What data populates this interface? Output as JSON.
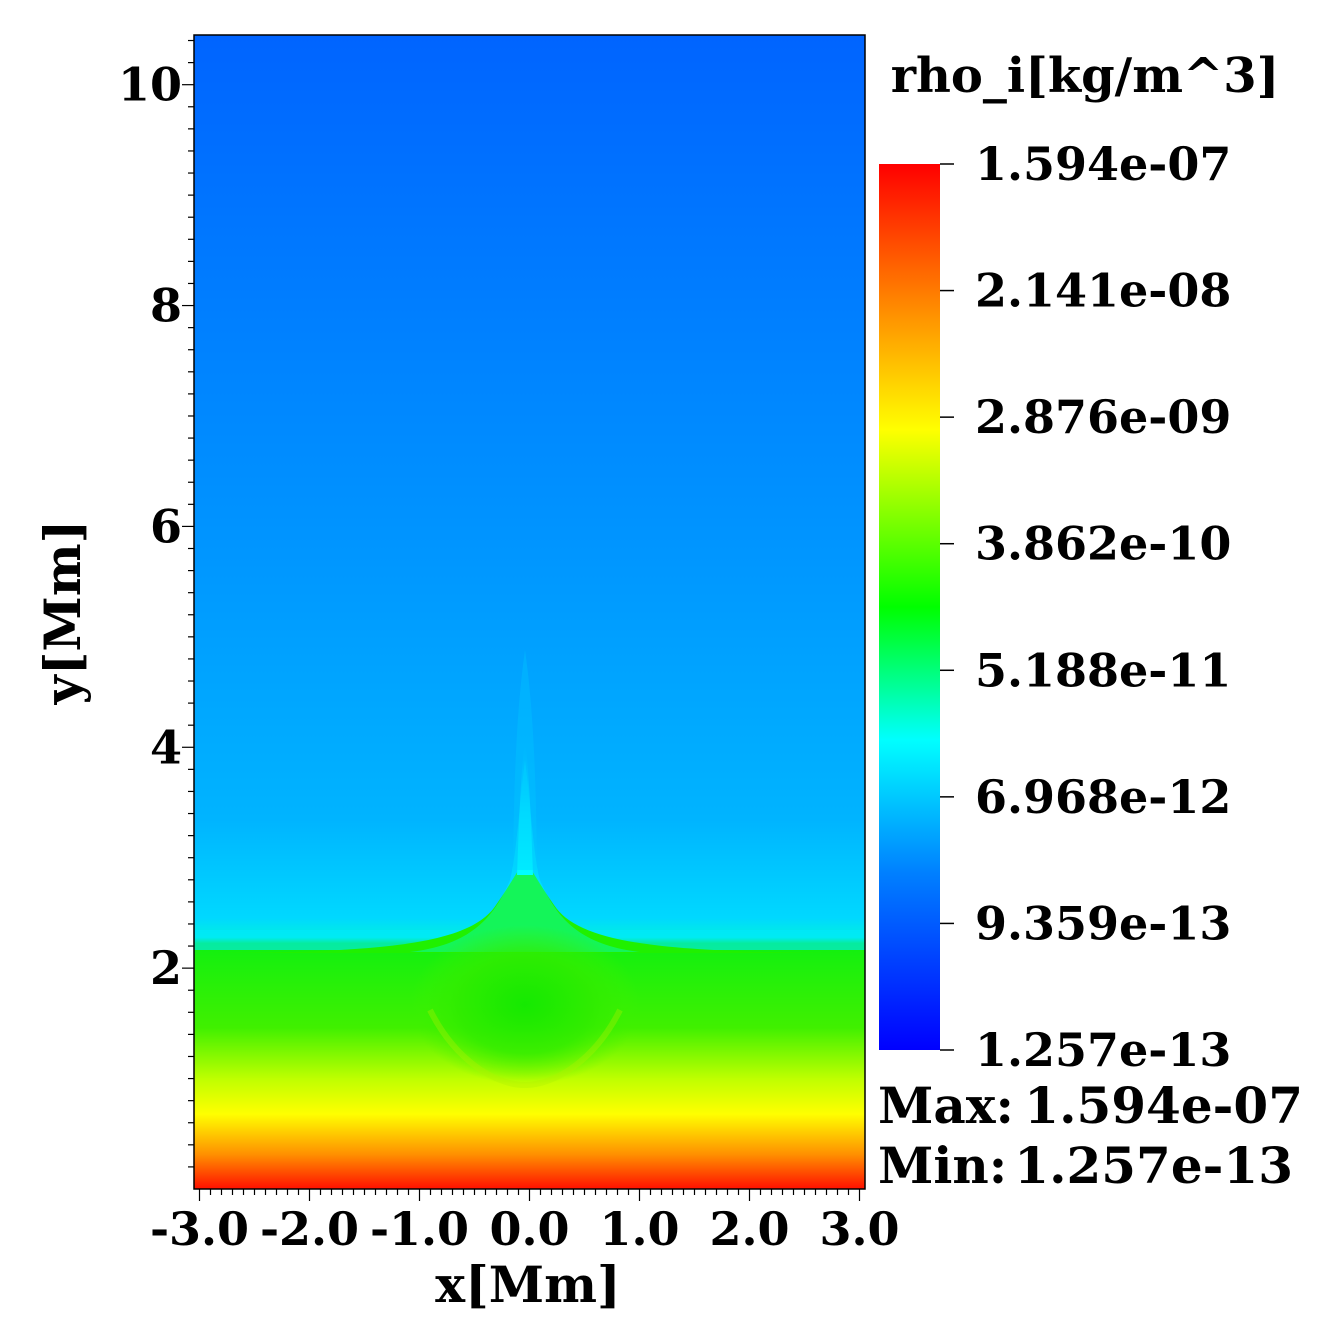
{
  "chart_data": {
    "type": "heatmap",
    "variable_label": "rho_i[kg/m^3]",
    "xlabel": "x[Mm]",
    "ylabel": "y[Mm]",
    "xlim": [
      -3.05,
      3.05
    ],
    "ylim": [
      0.0,
      10.45
    ],
    "x_ticks": [
      "-3.0",
      "-2.0",
      "-1.0",
      "0.0",
      "1.0",
      "2.0",
      "3.0"
    ],
    "x_tick_values": [
      -3.0,
      -2.0,
      -1.0,
      0.0,
      1.0,
      2.0,
      3.0
    ],
    "y_ticks": [
      "2",
      "4",
      "6",
      "8",
      "10"
    ],
    "y_tick_values": [
      2,
      4,
      6,
      8,
      10
    ],
    "colorbar": {
      "scale": "log",
      "tick_labels": [
        "1.594e-07",
        "2.141e-08",
        "2.876e-09",
        "3.862e-10",
        "5.188e-11",
        "6.968e-12",
        "9.359e-13",
        "1.257e-13"
      ],
      "colors": [
        "#ff0000",
        "#ff8000",
        "#ffff00",
        "#00ff00",
        "#00ffff",
        "#0080ff",
        "#0000ff"
      ]
    },
    "max_label": "Max:",
    "max_value": "1.594e-07",
    "min_label": "Min:",
    "min_value": "1.257e-13"
  }
}
